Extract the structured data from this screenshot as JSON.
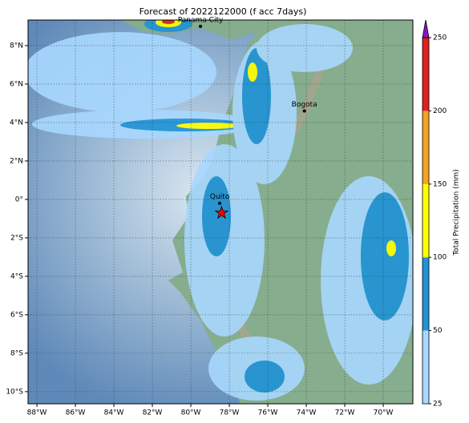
{
  "map": {
    "title": "Forecast of 2022122000 (f acc 7days)",
    "xlim": [
      -88.46,
      -68.46
    ],
    "ylim": [
      -10.63,
      9.33
    ],
    "xticks": [
      {
        "value": -88,
        "label": "88°W"
      },
      {
        "value": -86,
        "label": "86°W"
      },
      {
        "value": -84,
        "label": "84°W"
      },
      {
        "value": -82,
        "label": "82°W"
      },
      {
        "value": -80,
        "label": "80°W"
      },
      {
        "value": -78,
        "label": "78°W"
      },
      {
        "value": -76,
        "label": "76°W"
      },
      {
        "value": -74,
        "label": "74°W"
      },
      {
        "value": -72,
        "label": "72°W"
      },
      {
        "value": -70,
        "label": "70°W"
      }
    ],
    "yticks": [
      {
        "value": 8,
        "label": "8°N"
      },
      {
        "value": 6,
        "label": "6°N"
      },
      {
        "value": 4,
        "label": "4°N"
      },
      {
        "value": 2,
        "label": "2°N"
      },
      {
        "value": 0,
        "label": "0°"
      },
      {
        "value": -2,
        "label": "2°S"
      },
      {
        "value": -4,
        "label": "4°S"
      },
      {
        "value": -6,
        "label": "6°S"
      },
      {
        "value": -8,
        "label": "8°S"
      },
      {
        "value": -10,
        "label": "10°S"
      }
    ],
    "grid": true,
    "cities": [
      {
        "name": "Panama City",
        "lon": -79.5,
        "lat": 9.0
      },
      {
        "name": "Bogota",
        "lon": -74.1,
        "lat": 4.6
      },
      {
        "name": "Quito",
        "lon": -78.5,
        "lat": -0.2
      }
    ],
    "marker": {
      "lon": -78.4,
      "lat": -0.7,
      "color": "#ff0000"
    },
    "colorbar": {
      "label": "Total Precipitation (mm)",
      "levels": [
        25,
        50,
        100,
        150,
        200,
        250
      ],
      "colors": [
        "#a8d8ff",
        "#1e93d8",
        "#ffff00",
        "#f4a31e",
        "#e01f1f"
      ],
      "extend_color": "#8a14c8"
    }
  }
}
